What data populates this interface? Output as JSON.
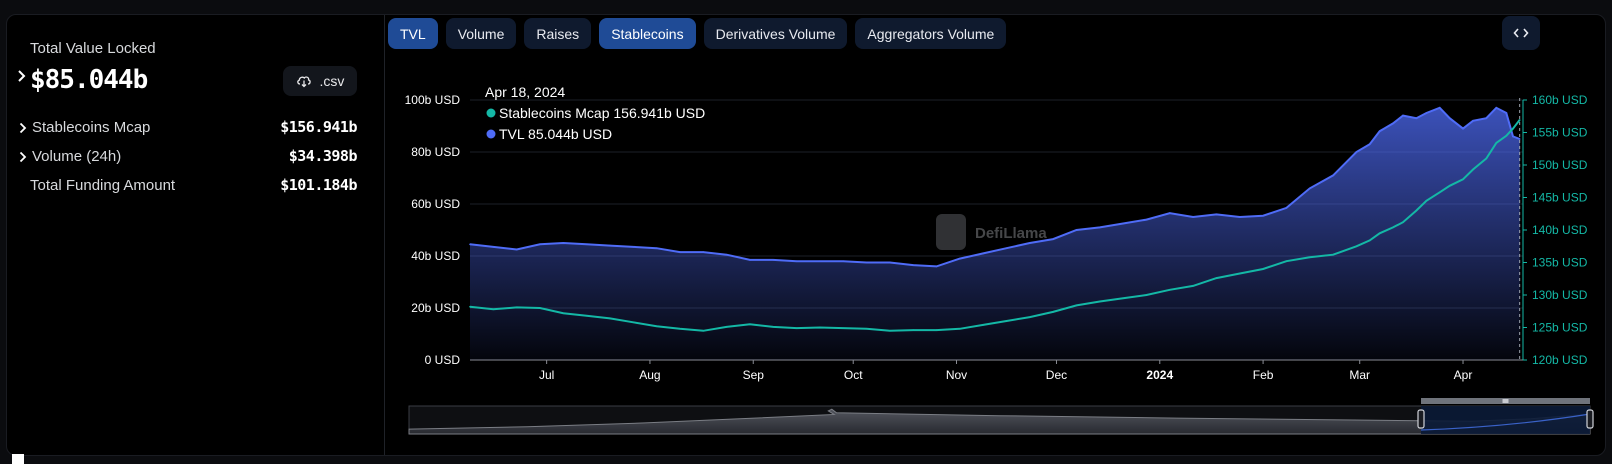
{
  "summary": {
    "tvl_label": "Total Value Locked",
    "tvl_value": "$85.044b",
    "csv_label": ".csv",
    "stats": [
      {
        "label": "Stablecoins Mcap",
        "value": "$156.941b",
        "expandable": true
      },
      {
        "label": "Volume (24h)",
        "value": "$34.398b",
        "expandable": true
      },
      {
        "label": "Total Funding Amount",
        "value": "$101.184b",
        "expandable": false
      }
    ]
  },
  "tabs": [
    {
      "label": "TVL",
      "active": true
    },
    {
      "label": "Volume",
      "active": false
    },
    {
      "label": "Raises",
      "active": false
    },
    {
      "label": "Stablecoins",
      "active": true
    },
    {
      "label": "Derivatives Volume",
      "active": false
    },
    {
      "label": "Aggregators Volume",
      "active": false
    }
  ],
  "tooltip": {
    "date": "Apr 18, 2024",
    "rows": [
      {
        "name": "Stablecoins Mcap",
        "value": "156.941b USD",
        "color": "#14b8a6"
      },
      {
        "name": "TVL",
        "value": "85.044b USD",
        "color": "#4f6cf7"
      }
    ]
  },
  "watermark": "DefiLlama",
  "colors": {
    "tvl": "#4f6cf7",
    "stablecoins": "#14b8a6",
    "accent": "#1f4b96"
  },
  "chart_data": {
    "type": "area",
    "x_ticks": [
      {
        "label": "Jul",
        "bold": false,
        "x": "2023-07-01"
      },
      {
        "label": "Aug",
        "bold": false,
        "x": "2023-08-01"
      },
      {
        "label": "Sep",
        "bold": false,
        "x": "2023-09-01"
      },
      {
        "label": "Oct",
        "bold": false,
        "x": "2023-10-01"
      },
      {
        "label": "Nov",
        "bold": false,
        "x": "2023-11-01"
      },
      {
        "label": "Dec",
        "bold": false,
        "x": "2023-12-01"
      },
      {
        "label": "2024",
        "bold": true,
        "x": "2024-01-01"
      },
      {
        "label": "Feb",
        "bold": false,
        "x": "2024-02-01"
      },
      {
        "label": "Mar",
        "bold": false,
        "x": "2024-03-01"
      },
      {
        "label": "Apr",
        "bold": false,
        "x": "2024-04-01"
      }
    ],
    "x_range": [
      "2023-06-08",
      "2024-04-19"
    ],
    "left_axis": {
      "ticks": [
        "0 USD",
        "20b USD",
        "40b USD",
        "60b USD",
        "80b USD",
        "100b USD"
      ],
      "ylim": [
        0,
        100
      ]
    },
    "right_axis": {
      "ticks": [
        "120b USD",
        "125b USD",
        "130b USD",
        "135b USD",
        "140b USD",
        "145b USD",
        "150b USD",
        "155b USD",
        "160b USD"
      ],
      "ylim": [
        120,
        160
      ],
      "color": "#14b8a6"
    },
    "series": [
      {
        "name": "TVL",
        "axis": "left",
        "x": [
          "2023-06-08",
          "2023-06-15",
          "2023-06-22",
          "2023-06-29",
          "2023-07-06",
          "2023-07-13",
          "2023-07-20",
          "2023-07-27",
          "2023-08-03",
          "2023-08-10",
          "2023-08-17",
          "2023-08-24",
          "2023-08-31",
          "2023-09-07",
          "2023-09-14",
          "2023-09-21",
          "2023-09-28",
          "2023-10-05",
          "2023-10-12",
          "2023-10-19",
          "2023-10-26",
          "2023-11-02",
          "2023-11-09",
          "2023-11-16",
          "2023-11-23",
          "2023-11-30",
          "2023-12-07",
          "2023-12-14",
          "2023-12-21",
          "2023-12-28",
          "2024-01-04",
          "2024-01-11",
          "2024-01-18",
          "2024-01-25",
          "2024-02-01",
          "2024-02-08",
          "2024-02-15",
          "2024-02-22",
          "2024-02-29",
          "2024-03-04",
          "2024-03-07",
          "2024-03-11",
          "2024-03-14",
          "2024-03-18",
          "2024-03-21",
          "2024-03-25",
          "2024-03-28",
          "2024-04-01",
          "2024-04-04",
          "2024-04-08",
          "2024-04-11",
          "2024-04-14",
          "2024-04-16",
          "2024-04-18"
        ],
        "values": [
          44.5,
          43.5,
          42.5,
          44.5,
          45,
          44.5,
          44,
          43.5,
          43,
          41.5,
          41.5,
          40.5,
          38.5,
          38.5,
          38,
          38,
          38,
          37.5,
          37.5,
          36.5,
          36,
          39,
          41,
          43,
          45,
          46.5,
          50,
          51,
          52.5,
          54,
          56.5,
          55,
          56,
          55,
          55.5,
          58.5,
          66,
          71,
          80,
          83,
          88,
          91,
          94,
          93,
          95,
          97,
          93,
          89,
          92,
          93,
          97,
          95,
          86,
          85
        ]
      },
      {
        "name": "Stablecoins Mcap",
        "axis": "right",
        "x": [
          "2023-06-08",
          "2023-06-15",
          "2023-06-22",
          "2023-06-29",
          "2023-07-06",
          "2023-07-13",
          "2023-07-20",
          "2023-07-27",
          "2023-08-03",
          "2023-08-10",
          "2023-08-17",
          "2023-08-24",
          "2023-08-31",
          "2023-09-07",
          "2023-09-14",
          "2023-09-21",
          "2023-09-28",
          "2023-10-05",
          "2023-10-12",
          "2023-10-19",
          "2023-10-26",
          "2023-11-02",
          "2023-11-09",
          "2023-11-16",
          "2023-11-23",
          "2023-11-30",
          "2023-12-07",
          "2023-12-14",
          "2023-12-21",
          "2023-12-28",
          "2024-01-04",
          "2024-01-11",
          "2024-01-18",
          "2024-01-25",
          "2024-02-01",
          "2024-02-08",
          "2024-02-15",
          "2024-02-22",
          "2024-02-29",
          "2024-03-04",
          "2024-03-07",
          "2024-03-11",
          "2024-03-14",
          "2024-03-18",
          "2024-03-21",
          "2024-03-25",
          "2024-03-28",
          "2024-04-01",
          "2024-04-04",
          "2024-04-08",
          "2024-04-11",
          "2024-04-14",
          "2024-04-16",
          "2024-04-18"
        ],
        "values": [
          128.2,
          127.8,
          128.1,
          128.0,
          127.2,
          126.8,
          126.4,
          125.8,
          125.2,
          124.8,
          124.5,
          125.1,
          125.5,
          125.1,
          124.9,
          125.0,
          124.9,
          124.8,
          124.5,
          124.6,
          124.6,
          124.8,
          125.4,
          126.0,
          126.6,
          127.4,
          128.4,
          129.0,
          129.5,
          130.0,
          130.8,
          131.4,
          132.6,
          133.3,
          134.0,
          135.2,
          135.8,
          136.2,
          137.5,
          138.4,
          139.5,
          140.4,
          141.2,
          143.0,
          144.5,
          145.8,
          146.8,
          147.8,
          149.3,
          151.0,
          153.4,
          154.5,
          155.6,
          156.94
        ]
      }
    ]
  }
}
